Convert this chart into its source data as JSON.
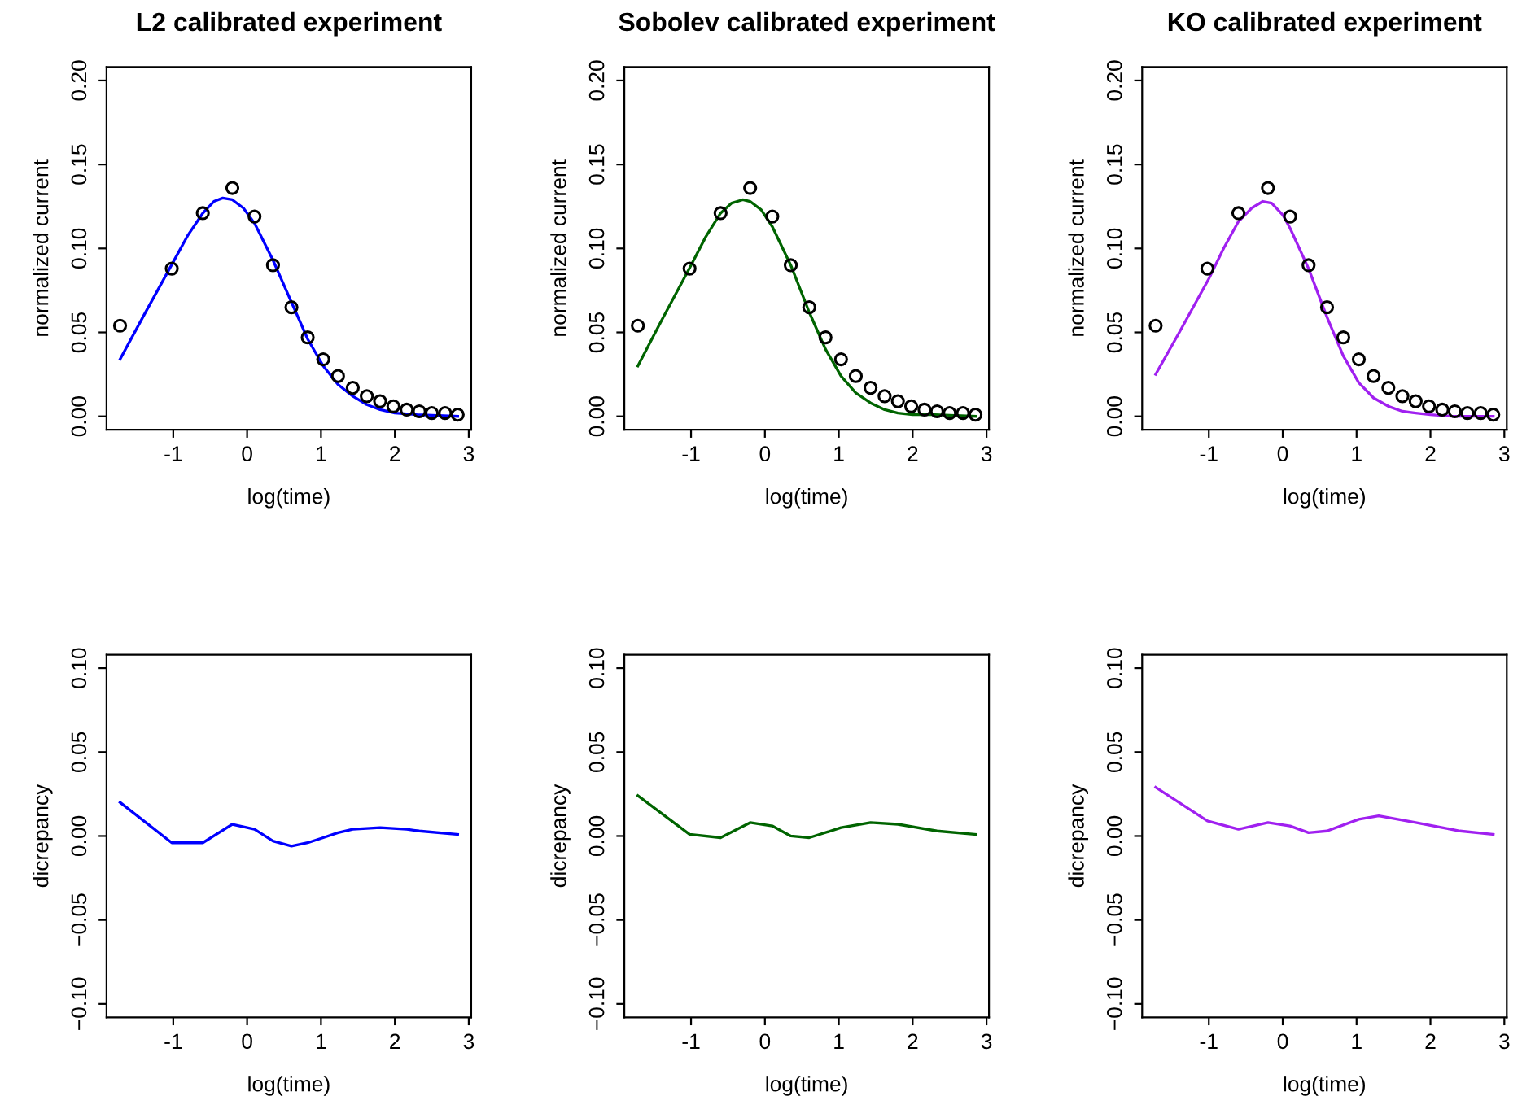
{
  "chart_data": [
    {
      "type": "line",
      "title": "L2 calibrated experiment",
      "xlabel": "log(time)",
      "ylabel": "normalized current",
      "xlim": [
        -1.903,
        3.033
      ],
      "ylim": [
        -0.008,
        0.208
      ],
      "xticks": [
        -1,
        0,
        1,
        2,
        3
      ],
      "yticks": [
        {
          "value": 0,
          "label": "0.00"
        },
        {
          "value": 0.05,
          "label": "0.05"
        },
        {
          "value": 0.1,
          "label": "0.10"
        },
        {
          "value": 0.15,
          "label": "0.15"
        },
        {
          "value": 0.2,
          "label": "0.20"
        }
      ],
      "series": [
        {
          "type": "scatter",
          "marker": "circle",
          "color": "#000000",
          "x": [
            -1.72,
            -1.02,
            -0.6,
            -0.2,
            0.1,
            0.35,
            0.6,
            0.82,
            1.03,
            1.23,
            1.43,
            1.62,
            1.8,
            1.98,
            2.16,
            2.33,
            2.5,
            2.68,
            2.85
          ],
          "values": [
            0.054,
            0.088,
            0.121,
            0.136,
            0.119,
            0.09,
            0.065,
            0.047,
            0.034,
            0.024,
            0.017,
            0.012,
            0.009,
            0.006,
            0.004,
            0.003,
            0.002,
            0.002,
            0.001
          ]
        },
        {
          "color": "#0000ff",
          "x": [
            -1.72,
            -1.4,
            -1.0,
            -0.8,
            -0.6,
            -0.45,
            -0.33,
            -0.2,
            -0.05,
            0.1,
            0.35,
            0.6,
            0.82,
            1.03,
            1.23,
            1.43,
            1.62,
            1.8,
            2.0,
            2.3,
            2.85
          ],
          "values": [
            0.034,
            0.06,
            0.092,
            0.108,
            0.121,
            0.128,
            0.13,
            0.129,
            0.124,
            0.115,
            0.093,
            0.068,
            0.046,
            0.03,
            0.019,
            0.012,
            0.007,
            0.004,
            0.002,
            0.001,
            0.0
          ]
        }
      ]
    },
    {
      "type": "line",
      "title": "Sobolev calibrated experiment",
      "xlabel": "log(time)",
      "ylabel": "normalized current",
      "xlim": [
        -1.903,
        3.033
      ],
      "ylim": [
        -0.008,
        0.208
      ],
      "xticks": [
        -1,
        0,
        1,
        2,
        3
      ],
      "yticks": [
        {
          "value": 0,
          "label": "0.00"
        },
        {
          "value": 0.05,
          "label": "0.05"
        },
        {
          "value": 0.1,
          "label": "0.10"
        },
        {
          "value": 0.15,
          "label": "0.15"
        },
        {
          "value": 0.2,
          "label": "0.20"
        }
      ],
      "series": [
        {
          "type": "scatter",
          "marker": "circle",
          "color": "#000000",
          "x": [
            -1.72,
            -1.02,
            -0.6,
            -0.2,
            0.1,
            0.35,
            0.6,
            0.82,
            1.03,
            1.23,
            1.43,
            1.62,
            1.8,
            1.98,
            2.16,
            2.33,
            2.5,
            2.68,
            2.85
          ],
          "values": [
            0.054,
            0.088,
            0.121,
            0.136,
            0.119,
            0.09,
            0.065,
            0.047,
            0.034,
            0.024,
            0.017,
            0.012,
            0.009,
            0.006,
            0.004,
            0.003,
            0.002,
            0.002,
            0.001
          ]
        },
        {
          "color": "#006400",
          "x": [
            -1.72,
            -1.4,
            -1.0,
            -0.8,
            -0.6,
            -0.45,
            -0.3,
            -0.2,
            -0.05,
            0.1,
            0.35,
            0.6,
            0.82,
            1.03,
            1.23,
            1.43,
            1.62,
            1.8,
            2.0,
            2.3,
            2.85
          ],
          "values": [
            0.03,
            0.057,
            0.09,
            0.107,
            0.121,
            0.127,
            0.129,
            0.128,
            0.123,
            0.113,
            0.09,
            0.062,
            0.04,
            0.024,
            0.014,
            0.008,
            0.004,
            0.002,
            0.001,
            0.001,
            0.0
          ]
        }
      ]
    },
    {
      "type": "line",
      "title": "KO calibrated experiment",
      "xlabel": "log(time)",
      "ylabel": "normalized current",
      "xlim": [
        -1.903,
        3.033
      ],
      "ylim": [
        -0.008,
        0.208
      ],
      "xticks": [
        -1,
        0,
        1,
        2,
        3
      ],
      "yticks": [
        {
          "value": 0,
          "label": "0.00"
        },
        {
          "value": 0.05,
          "label": "0.05"
        },
        {
          "value": 0.1,
          "label": "0.10"
        },
        {
          "value": 0.15,
          "label": "0.15"
        },
        {
          "value": 0.2,
          "label": "0.20"
        }
      ],
      "series": [
        {
          "type": "scatter",
          "marker": "circle",
          "color": "#000000",
          "x": [
            -1.72,
            -1.02,
            -0.6,
            -0.2,
            0.1,
            0.35,
            0.6,
            0.82,
            1.03,
            1.23,
            1.43,
            1.62,
            1.8,
            1.98,
            2.16,
            2.33,
            2.5,
            2.68,
            2.85
          ],
          "values": [
            0.054,
            0.088,
            0.121,
            0.136,
            0.119,
            0.09,
            0.065,
            0.047,
            0.034,
            0.024,
            0.017,
            0.012,
            0.009,
            0.006,
            0.004,
            0.003,
            0.002,
            0.002,
            0.001
          ]
        },
        {
          "color": "#a020f0",
          "x": [
            -1.72,
            -1.4,
            -1.0,
            -0.8,
            -0.6,
            -0.42,
            -0.27,
            -0.15,
            0.0,
            0.1,
            0.35,
            0.6,
            0.82,
            1.03,
            1.23,
            1.43,
            1.62,
            1.8,
            2.0,
            2.3,
            2.85
          ],
          "values": [
            0.025,
            0.05,
            0.082,
            0.1,
            0.116,
            0.124,
            0.128,
            0.127,
            0.12,
            0.112,
            0.088,
            0.059,
            0.036,
            0.02,
            0.011,
            0.006,
            0.003,
            0.002,
            0.001,
            0.0,
            0.0
          ]
        }
      ]
    },
    {
      "type": "line",
      "xlabel": "log(time)",
      "ylabel": "dicrepancy",
      "xlim": [
        -1.903,
        3.033
      ],
      "ylim": [
        -0.108,
        0.108
      ],
      "xticks": [
        -1,
        0,
        1,
        2,
        3
      ],
      "yticks": [
        {
          "value": -0.1,
          "label": "−0.10"
        },
        {
          "value": -0.05,
          "label": "−0.05"
        },
        {
          "value": 0,
          "label": "0.00"
        },
        {
          "value": 0.05,
          "label": "0.05"
        },
        {
          "value": 0.1,
          "label": "0.10"
        }
      ],
      "series": [
        {
          "color": "#0000ff",
          "x": [
            -1.72,
            -1.02,
            -0.6,
            -0.2,
            0.1,
            0.35,
            0.6,
            0.82,
            1.03,
            1.23,
            1.43,
            1.8,
            2.16,
            2.33,
            2.85
          ],
          "values": [
            0.02,
            -0.004,
            -0.004,
            0.007,
            0.004,
            -0.003,
            -0.006,
            -0.004,
            -0.001,
            0.002,
            0.004,
            0.005,
            0.004,
            0.003,
            0.001
          ]
        }
      ]
    },
    {
      "type": "line",
      "xlabel": "log(time)",
      "ylabel": "dicrepancy",
      "xlim": [
        -1.903,
        3.033
      ],
      "ylim": [
        -0.108,
        0.108
      ],
      "xticks": [
        -1,
        0,
        1,
        2,
        3
      ],
      "yticks": [
        {
          "value": -0.1,
          "label": "−0.10"
        },
        {
          "value": -0.05,
          "label": "−0.05"
        },
        {
          "value": 0,
          "label": "0.00"
        },
        {
          "value": 0.05,
          "label": "0.05"
        },
        {
          "value": 0.1,
          "label": "0.10"
        }
      ],
      "series": [
        {
          "color": "#006400",
          "x": [
            -1.72,
            -1.02,
            -0.6,
            -0.2,
            0.1,
            0.35,
            0.6,
            1.03,
            1.43,
            1.8,
            2.33,
            2.85
          ],
          "values": [
            0.024,
            0.001,
            -0.001,
            0.008,
            0.006,
            0.0,
            -0.001,
            0.005,
            0.008,
            0.007,
            0.003,
            0.001
          ]
        }
      ]
    },
    {
      "type": "line",
      "xlabel": "log(time)",
      "ylabel": "dicrepancy",
      "xlim": [
        -1.903,
        3.033
      ],
      "ylim": [
        -0.108,
        0.108
      ],
      "xticks": [
        -1,
        0,
        1,
        2,
        3
      ],
      "yticks": [
        {
          "value": -0.1,
          "label": "−0.10"
        },
        {
          "value": -0.05,
          "label": "−0.05"
        },
        {
          "value": 0,
          "label": "0.00"
        },
        {
          "value": 0.05,
          "label": "0.05"
        },
        {
          "value": 0.1,
          "label": "0.10"
        }
      ],
      "series": [
        {
          "color": "#a020f0",
          "x": [
            -1.72,
            -1.02,
            -0.6,
            -0.2,
            0.1,
            0.35,
            0.6,
            1.03,
            1.3,
            1.8,
            2.16,
            2.4,
            2.85
          ],
          "values": [
            0.029,
            0.009,
            0.004,
            0.008,
            0.006,
            0.002,
            0.003,
            0.01,
            0.012,
            0.008,
            0.005,
            0.003,
            0.001
          ]
        }
      ]
    }
  ]
}
